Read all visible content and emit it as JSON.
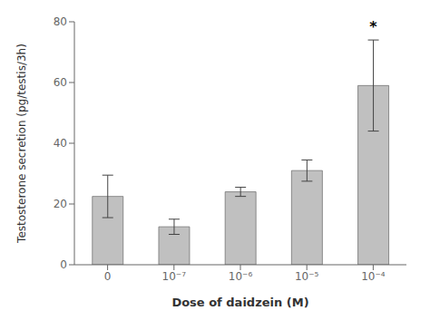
{
  "chart_data": {
    "type": "bar",
    "categories": [
      "0",
      "10⁻⁷",
      "10⁻⁶",
      "10⁻⁵",
      "10⁻⁴"
    ],
    "values": [
      22.5,
      12.5,
      24.0,
      31.0,
      59.0
    ],
    "errors": [
      7.0,
      2.5,
      1.5,
      3.5,
      15.0
    ],
    "color": "#c0c0c0",
    "xlabel": "Dose of daidzein (M)",
    "ylabel": "Testosterone secretion (pg/testis/3h)",
    "ylim": [
      0,
      80
    ],
    "yticks": [
      0,
      20,
      40,
      60,
      80
    ],
    "grid": false,
    "annotations": [
      {
        "text": "*",
        "x": "10⁻⁴",
        "y": 76.0
      }
    ]
  }
}
